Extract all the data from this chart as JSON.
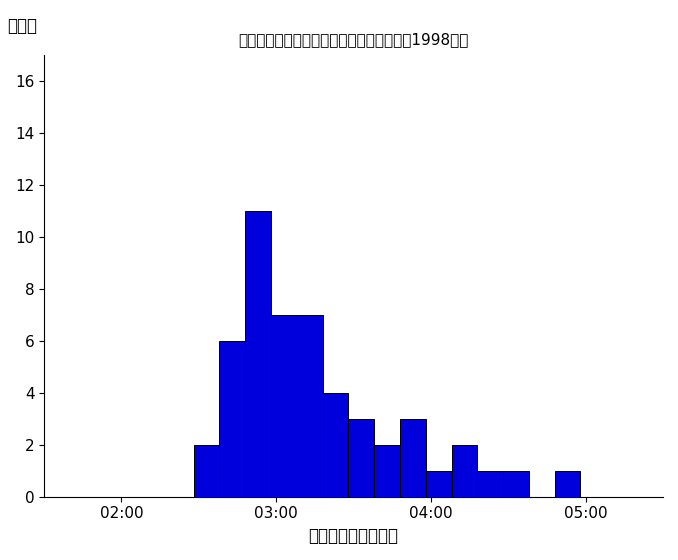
{
  "title": "パフォーマンス時間ごとの歌手数の分布（1998年）",
  "ylabel": "歌手数",
  "xlabel": "パフォーマンス時間",
  "bar_color": "#0000dd",
  "bar_edge_color": "#000000",
  "bar_edge_width": 0.7,
  "xlim_left": 90,
  "xlim_right": 330,
  "ylim_top": 17,
  "yticks": [
    0,
    2,
    4,
    6,
    8,
    10,
    12,
    14,
    16
  ],
  "xticks": [
    120,
    180,
    240,
    300
  ],
  "xtick_labels": [
    "02:00",
    "03:00",
    "04:00",
    "05:00"
  ],
  "bin_edges": [
    148,
    158,
    168,
    178,
    188,
    198,
    208,
    218,
    228,
    238,
    248,
    258,
    268,
    278,
    288,
    298,
    308
  ],
  "counts": [
    2,
    6,
    11,
    7,
    7,
    4,
    3,
    2,
    3,
    1,
    2,
    1,
    1,
    0,
    1,
    0
  ]
}
